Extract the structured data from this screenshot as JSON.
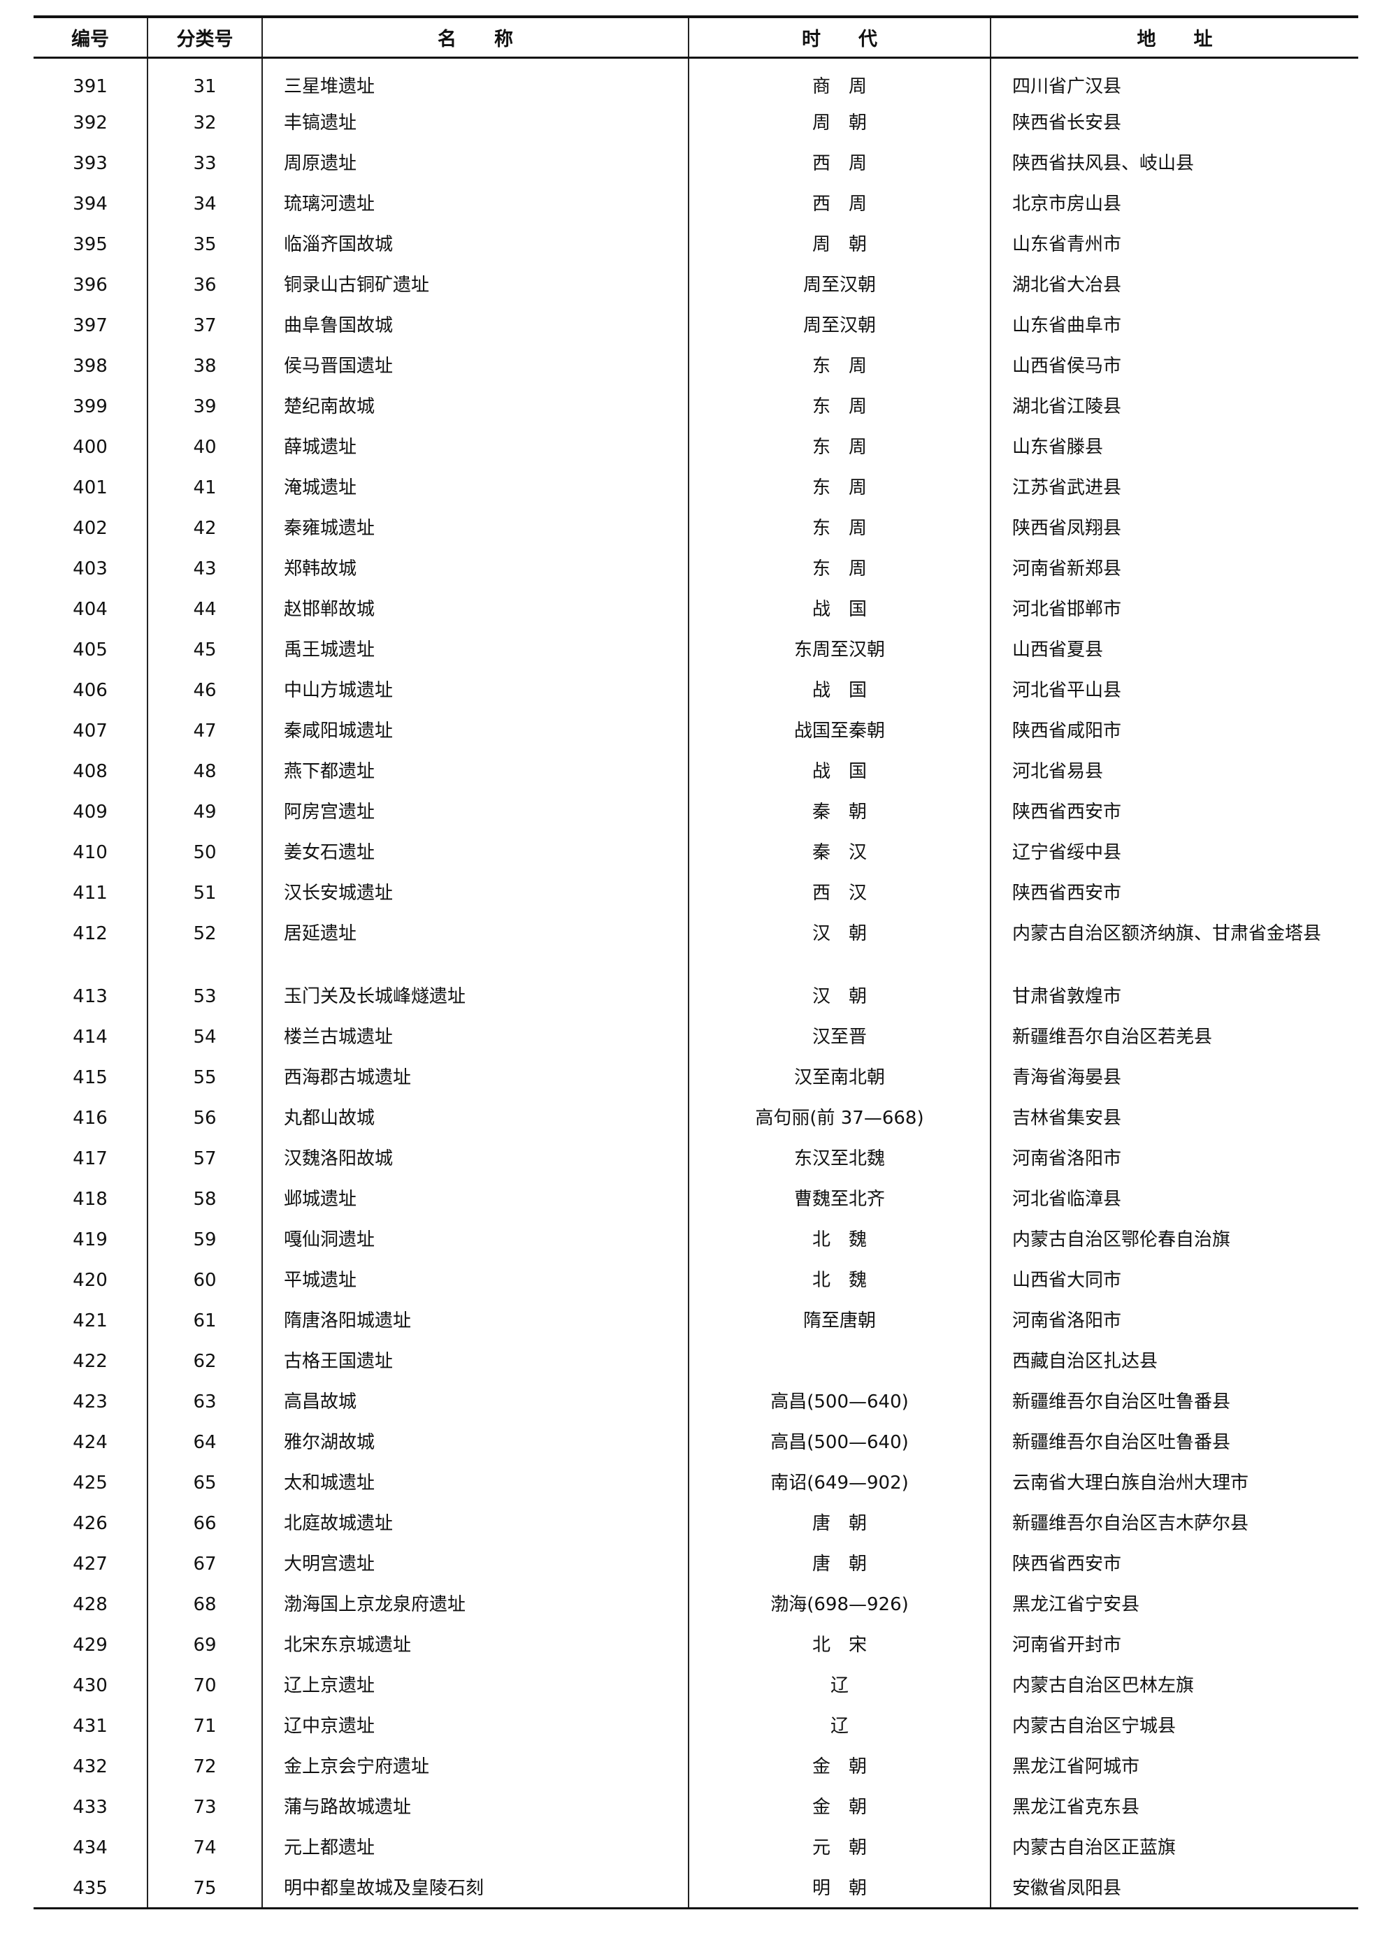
{
  "headers": [
    "编号",
    "分类号",
    "名　　称",
    "时　　代",
    "地　　址"
  ],
  "rows": [
    {
      "no": "391",
      "cls": "31",
      "name": "三星堆遗址",
      "era": "商　周",
      "addr": "四川省广汉县"
    },
    {
      "no": "392",
      "cls": "32",
      "name": "丰镐遗址",
      "era": "周　朝",
      "addr": "陕西省长安县"
    },
    {
      "no": "393",
      "cls": "33",
      "name": "周原遗址",
      "era": "西　周",
      "addr": "陕西省扶风县、岐山县"
    },
    {
      "no": "394",
      "cls": "34",
      "name": "琉璃河遗址",
      "era": "西　周",
      "addr": "北京市房山县"
    },
    {
      "no": "395",
      "cls": "35",
      "name": "临淄齐国故城",
      "era": "周　朝",
      "addr": "山东省青州市"
    },
    {
      "no": "396",
      "cls": "36",
      "name": "铜录山古铜矿遗址",
      "era": "周至汉朝",
      "addr": "湖北省大冶县"
    },
    {
      "no": "397",
      "cls": "37",
      "name": "曲阜鲁国故城",
      "era": "周至汉朝",
      "addr": "山东省曲阜市"
    },
    {
      "no": "398",
      "cls": "38",
      "name": "侯马晋国遗址",
      "era": "东　周",
      "addr": "山西省侯马市"
    },
    {
      "no": "399",
      "cls": "39",
      "name": "楚纪南故城",
      "era": "东　周",
      "addr": "湖北省江陵县"
    },
    {
      "no": "400",
      "cls": "40",
      "name": "薛城遗址",
      "era": "东　周",
      "addr": "山东省滕县"
    },
    {
      "no": "401",
      "cls": "41",
      "name": "淹城遗址",
      "era": "东　周",
      "addr": "江苏省武进县"
    },
    {
      "no": "402",
      "cls": "42",
      "name": "秦雍城遗址",
      "era": "东　周",
      "addr": "陕西省凤翔县"
    },
    {
      "no": "403",
      "cls": "43",
      "name": "郑韩故城",
      "era": "东　周",
      "addr": "河南省新郑县"
    },
    {
      "no": "404",
      "cls": "44",
      "name": "赵邯郸故城",
      "era": "战　国",
      "addr": "河北省邯郸市"
    },
    {
      "no": "405",
      "cls": "45",
      "name": "禹王城遗址",
      "era": "东周至汉朝",
      "addr": "山西省夏县"
    },
    {
      "no": "406",
      "cls": "46",
      "name": "中山方城遗址",
      "era": "战　国",
      "addr": "河北省平山县"
    },
    {
      "no": "407",
      "cls": "47",
      "name": "秦咸阳城遗址",
      "era": "战国至秦朝",
      "addr": "陕西省咸阳市"
    },
    {
      "no": "408",
      "cls": "48",
      "name": "燕下都遗址",
      "era": "战　国",
      "addr": "河北省易县"
    },
    {
      "no": "409",
      "cls": "49",
      "name": "阿房宫遗址",
      "era": "秦　朝",
      "addr": "陕西省西安市"
    },
    {
      "no": "410",
      "cls": "50",
      "name": "姜女石遗址",
      "era": "秦　汉",
      "addr": "辽宁省绥中县"
    },
    {
      "no": "411",
      "cls": "51",
      "name": "汉长安城遗址",
      "era": "西　汉",
      "addr": "陕西省西安市"
    },
    {
      "no": "412",
      "cls": "52",
      "name": "居延遗址",
      "era": "汉　朝",
      "addr": "内蒙古自治区额济纳旗、甘肃省金塔县"
    },
    {
      "no": "413",
      "cls": "53",
      "name": "玉门关及长城峰燧遗址",
      "era": "汉　朝",
      "addr": "甘肃省敦煌市"
    },
    {
      "no": "414",
      "cls": "54",
      "name": "楼兰古城遗址",
      "era": "汉至晋",
      "addr": "新疆维吾尔自治区若羌县"
    },
    {
      "no": "415",
      "cls": "55",
      "name": "西海郡古城遗址",
      "era": "汉至南北朝",
      "addr": "青海省海晏县"
    },
    {
      "no": "416",
      "cls": "56",
      "name": "丸都山故城",
      "era": "高句丽(前 37—668)",
      "addr": "吉林省集安县"
    },
    {
      "no": "417",
      "cls": "57",
      "name": "汉魏洛阳故城",
      "era": "东汉至北魏",
      "addr": "河南省洛阳市"
    },
    {
      "no": "418",
      "cls": "58",
      "name": "邺城遗址",
      "era": "曹魏至北齐",
      "addr": "河北省临漳县"
    },
    {
      "no": "419",
      "cls": "59",
      "name": "嘎仙洞遗址",
      "era": "北　魏",
      "addr": "内蒙古自治区鄂伦春自治旗"
    },
    {
      "no": "420",
      "cls": "60",
      "name": "平城遗址",
      "era": "北　魏",
      "addr": "山西省大同市"
    },
    {
      "no": "421",
      "cls": "61",
      "name": "隋唐洛阳城遗址",
      "era": "隋至唐朝",
      "addr": "河南省洛阳市"
    },
    {
      "no": "422",
      "cls": "62",
      "name": "古格王国遗址",
      "era": "",
      "addr": "西藏自治区扎达县"
    },
    {
      "no": "423",
      "cls": "63",
      "name": "高昌故城",
      "era": "高昌(500—640)",
      "addr": "新疆维吾尔自治区吐鲁番县"
    },
    {
      "no": "424",
      "cls": "64",
      "name": "雅尔湖故城",
      "era": "高昌(500—640)",
      "addr": "新疆维吾尔自治区吐鲁番县"
    },
    {
      "no": "425",
      "cls": "65",
      "name": "太和城遗址",
      "era": "南诏(649—902)",
      "addr": "云南省大理白族自治州大理市"
    },
    {
      "no": "426",
      "cls": "66",
      "name": "北庭故城遗址",
      "era": "唐　朝",
      "addr": "新疆维吾尔自治区吉木萨尔县"
    },
    {
      "no": "427",
      "cls": "67",
      "name": "大明宫遗址",
      "era": "唐　朝",
      "addr": "陕西省西安市"
    },
    {
      "no": "428",
      "cls": "68",
      "name": "渤海国上京龙泉府遗址",
      "era": "渤海(698—926)",
      "addr": "黑龙江省宁安县"
    },
    {
      "no": "429",
      "cls": "69",
      "name": "北宋东京城遗址",
      "era": "北　宋",
      "addr": "河南省开封市"
    },
    {
      "no": "430",
      "cls": "70",
      "name": "辽上京遗址",
      "era": "辽",
      "addr": "内蒙古自治区巴林左旗"
    },
    {
      "no": "431",
      "cls": "71",
      "name": "辽中京遗址",
      "era": "辽",
      "addr": "内蒙古自治区宁城县"
    },
    {
      "no": "432",
      "cls": "72",
      "name": "金上京会宁府遗址",
      "era": "金　朝",
      "addr": "黑龙江省阿城市"
    },
    {
      "no": "433",
      "cls": "73",
      "name": "蒲与路故城遗址",
      "era": "金　朝",
      "addr": "黑龙江省克东县"
    },
    {
      "no": "434",
      "cls": "74",
      "name": "元上都遗址",
      "era": "元　朝",
      "addr": "内蒙古自治区正蓝旗"
    },
    {
      "no": "435",
      "cls": "75",
      "name": "明中都皇故城及皇陵石刻",
      "era": "明　朝",
      "addr": "安徽省凤阳县"
    }
  ]
}
